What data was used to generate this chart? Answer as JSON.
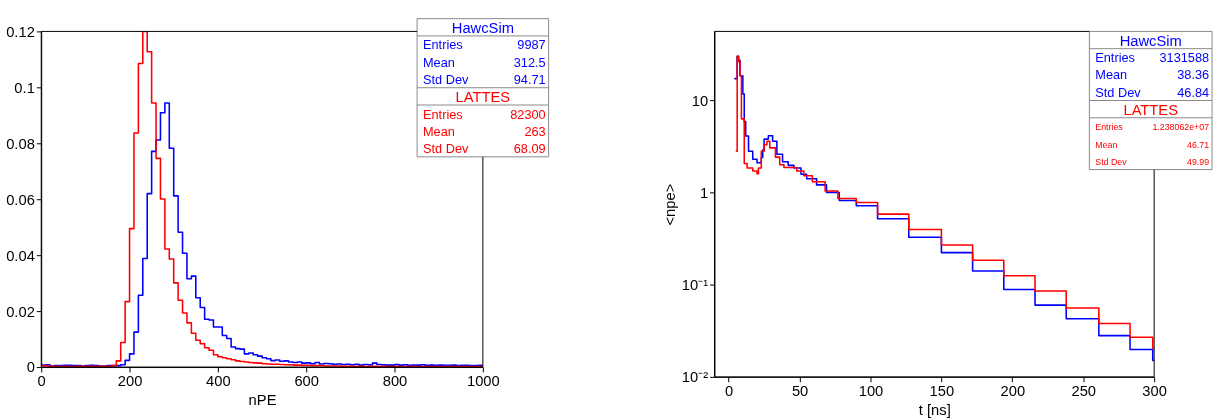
{
  "chart_data": [
    {
      "type": "histogram",
      "xlabel": "nPE",
      "xlim": [
        0,
        1000
      ],
      "xticks": [
        0,
        200,
        400,
        600,
        800,
        1000
      ],
      "ylim": [
        0,
        0.12
      ],
      "yticks": [
        0,
        0.02,
        0.04,
        0.06,
        0.08,
        0.1,
        0.12
      ],
      "grid": false,
      "legend": false,
      "bins": [
        0,
        10,
        20,
        30,
        40,
        50,
        60,
        70,
        80,
        90,
        100,
        110,
        120,
        130,
        140,
        150,
        160,
        170,
        180,
        190,
        200,
        210,
        220,
        230,
        240,
        250,
        260,
        270,
        280,
        290,
        300,
        310,
        320,
        330,
        340,
        350,
        360,
        370,
        380,
        390,
        400,
        410,
        420,
        430,
        440,
        450,
        460,
        470,
        480,
        490,
        500,
        510,
        520,
        530,
        540,
        550,
        560,
        570,
        580,
        590,
        600,
        610,
        620,
        630,
        640,
        650,
        660,
        670,
        680,
        690,
        700,
        710,
        720,
        730,
        740,
        750,
        760,
        770,
        780,
        790,
        800,
        810,
        820,
        830,
        840,
        850,
        860,
        870,
        880,
        890,
        900,
        910,
        920,
        930,
        940,
        950,
        960,
        970,
        980,
        990,
        1000
      ],
      "series": [
        {
          "name": "HawcSim",
          "color": "#0000ff",
          "values": [
            0.0007,
            0.0008,
            0.0004,
            0.0005,
            0.0005,
            0.0006,
            0.0006,
            0.0005,
            0.0005,
            0.0004,
            0.0005,
            0.0006,
            0.0005,
            0.0004,
            0.0004,
            0.0005,
            0.0005,
            0.0005,
            0.0008,
            0.0024,
            0.0047,
            0.0125,
            0.0257,
            0.0388,
            0.062,
            0.0771,
            0.0812,
            0.0909,
            0.0944,
            0.0782,
            0.0612,
            0.0482,
            0.0407,
            0.0316,
            0.0325,
            0.0248,
            0.0213,
            0.0171,
            0.0168,
            0.0143,
            0.0143,
            0.0113,
            0.0102,
            0.0072,
            0.0066,
            0.0064,
            0.0047,
            0.005,
            0.0044,
            0.0039,
            0.0033,
            0.003,
            0.0023,
            0.0025,
            0.0021,
            0.0022,
            0.0018,
            0.0016,
            0.0018,
            0.0014,
            0.0015,
            0.0012,
            0.0016,
            0.0011,
            0.0013,
            0.0012,
            0.001,
            0.0011,
            0.0009,
            0.001,
            0.0008,
            0.001,
            0.0007,
            0.0009,
            0.0008,
            0.0014,
            0.0009,
            0.0008,
            0.0007,
            0.0007,
            0.0009,
            0.0007,
            0.0008,
            0.0006,
            0.0007,
            0.0007,
            0.0008,
            0.0006,
            0.0007,
            0.0006,
            0.0007,
            0.0006,
            0.0006,
            0.0007,
            0.0005,
            0.0006,
            0.0006,
            0.0005,
            0.0005,
            0.0006
          ]
        },
        {
          "name": "LATTES",
          "color": "#ff0000",
          "values": [
            0.0005,
            0.0004,
            0.0003,
            0.0003,
            0.0002,
            0.0003,
            0.0002,
            0.0002,
            0.0003,
            0.0002,
            0.0003,
            0.0003,
            0.0002,
            0.0003,
            0.0003,
            0.0003,
            0.0005,
            0.0022,
            0.0088,
            0.0234,
            0.0495,
            0.0837,
            0.1085,
            0.12,
            0.1127,
            0.0944,
            0.0746,
            0.0601,
            0.0422,
            0.0386,
            0.0301,
            0.0239,
            0.0193,
            0.0158,
            0.0121,
            0.0096,
            0.0083,
            0.0069,
            0.006,
            0.0044,
            0.0037,
            0.0033,
            0.003,
            0.0026,
            0.0022,
            0.002,
            0.0018,
            0.0016,
            0.0015,
            0.0014,
            0.0012,
            0.0011,
            0.001,
            0.001,
            0.0009,
            0.0008,
            0.0008,
            0.0007,
            0.0007,
            0.0006,
            0.0006,
            0.0005,
            0.0005,
            0.0005,
            0.0004,
            0.0004,
            0.0004,
            0.0004,
            0.0003,
            0.0003,
            0.0003,
            0.0003,
            0.0003,
            0.0002,
            0.0003,
            0.0003,
            0.0002,
            0.0003,
            0.0002,
            0.0002,
            0.0003,
            0.0002,
            0.0002,
            0.0002,
            0.0003,
            0.0002,
            0.0002,
            0.0002,
            0.0002,
            0.0002,
            0.0002,
            0.0002,
            0.0002,
            0.0002,
            0.0002,
            0.0002,
            0.0002,
            0.0002,
            0.0002,
            0.0002
          ]
        }
      ],
      "annotations": [
        "Entries",
        "9987",
        "Mean",
        "312.5",
        "Std Dev",
        "94.71",
        "Entries",
        "82300",
        "Mean",
        "263",
        "Std Dev",
        "68.09"
      ]
    },
    {
      "type": "step",
      "xlabel": "t [ns]",
      "ylabel": "<npe>",
      "log": "y",
      "xlim": [
        -10,
        300
      ],
      "xticks": [
        0,
        50,
        100,
        150,
        200,
        250,
        300
      ],
      "ylim": [
        0.01,
        56
      ],
      "yticks": [
        {
          "value": 0.01,
          "label": "10⁻²"
        },
        {
          "value": 0.1,
          "label": "10⁻¹"
        },
        1,
        10
      ],
      "grid": false,
      "legend": false,
      "series": [
        {
          "name": "HawcSim",
          "color": "#0000ff",
          "x": [
            4,
            6,
            7,
            8,
            10,
            11,
            12,
            14,
            17,
            20,
            23,
            24,
            25,
            28,
            31,
            34,
            38,
            42,
            46,
            51,
            55,
            62,
            69,
            78,
            90,
            105,
            127,
            150,
            172,
            194,
            216,
            238,
            261,
            283,
            299,
            300
          ],
          "values": [
            17.2,
            30,
            27.3,
            18.5,
            11.7,
            5.9,
            4.1,
            2.8,
            2.3,
            2.1,
            2.4,
            2.9,
            3.8,
            4.14,
            3.6,
            2.6,
            2.16,
            1.97,
            1.85,
            1.58,
            1.41,
            1.21,
            1.0,
            0.82,
            0.72,
            0.52,
            0.327,
            0.223,
            0.141,
            0.0887,
            0.06,
            0.0427,
            0.028,
            0.0198,
            0.0151,
            0.0151
          ]
        },
        {
          "name": "LATTES",
          "color": "#ff0000",
          "x": [
            5,
            6,
            7,
            8,
            9,
            11,
            13,
            17,
            20,
            21,
            23,
            25,
            27,
            29,
            33,
            36,
            39,
            48,
            53,
            59,
            68,
            77,
            90,
            105,
            127,
            150,
            172,
            194,
            216,
            238,
            261,
            283,
            299,
            300
          ],
          "values": [
            2.8,
            30,
            26.2,
            18.5,
            6.3,
            2.07,
            1.85,
            1.71,
            1.6,
            1.85,
            2.8,
            3.3,
            3.6,
            3.05,
            2.42,
            2.0,
            1.87,
            1.71,
            1.52,
            1.31,
            1.04,
            0.86,
            0.78,
            0.583,
            0.397,
            0.27,
            0.184,
            0.125,
            0.0853,
            0.0559,
            0.038,
            0.0269,
            0.0206,
            0.0206
          ]
        }
      ],
      "annotations": [
        "Entries",
        "3131588",
        "Mean",
        "38.36",
        "Std Dev",
        "46.84",
        "Entries",
        "1.238062e+07",
        "Mean",
        "46.71",
        "Std Dev",
        "49.99"
      ]
    }
  ]
}
